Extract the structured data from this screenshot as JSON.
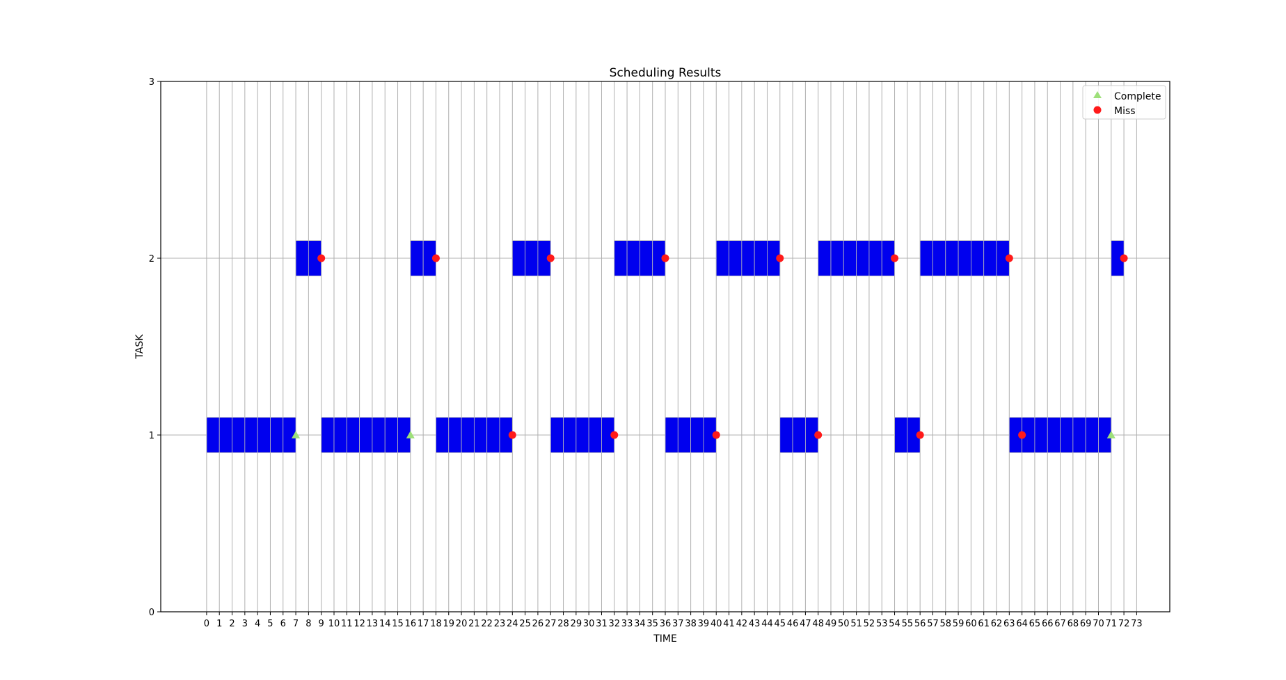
{
  "chart_data": {
    "type": "gantt",
    "title": "Scheduling Results",
    "xlabel": "TIME",
    "ylabel": "TASK",
    "xlim": [
      -3.6,
      75.6
    ],
    "ylim": [
      0,
      3
    ],
    "x_ticks": [
      0,
      1,
      2,
      3,
      4,
      5,
      6,
      7,
      8,
      9,
      10,
      11,
      12,
      13,
      14,
      15,
      16,
      17,
      18,
      19,
      20,
      21,
      22,
      23,
      24,
      25,
      26,
      27,
      28,
      29,
      30,
      31,
      32,
      33,
      34,
      35,
      36,
      37,
      38,
      39,
      40,
      41,
      42,
      43,
      44,
      45,
      46,
      47,
      48,
      49,
      50,
      51,
      52,
      53,
      54,
      55,
      56,
      57,
      58,
      59,
      60,
      61,
      62,
      63,
      64,
      65,
      66,
      67,
      68,
      69,
      70,
      71,
      72,
      73
    ],
    "y_ticks": [
      0,
      1,
      2,
      3
    ],
    "grid": true,
    "legend_position": "top-right",
    "legend": [
      {
        "label": "Complete",
        "marker": "triangle",
        "color": "#9ee07a"
      },
      {
        "label": "Miss",
        "marker": "circle",
        "color": "#ff1a1a"
      }
    ],
    "bar_color": "#0000ee",
    "bar_edge_color": "#bbbbbb",
    "series": [
      {
        "task": 1,
        "intervals": [
          [
            0,
            7
          ],
          [
            9,
            16
          ],
          [
            18,
            24
          ],
          [
            27,
            32
          ],
          [
            36,
            40
          ],
          [
            45,
            48
          ],
          [
            54,
            56
          ],
          [
            63,
            71
          ]
        ],
        "complete": [
          7,
          16,
          71
        ],
        "miss": [
          24,
          32,
          40,
          48,
          56,
          64
        ]
      },
      {
        "task": 2,
        "intervals": [
          [
            7,
            9
          ],
          [
            16,
            18
          ],
          [
            24,
            27
          ],
          [
            32,
            36
          ],
          [
            40,
            45
          ],
          [
            48,
            54
          ],
          [
            56,
            63
          ],
          [
            71,
            72
          ]
        ],
        "complete": [],
        "miss": [
          9,
          18,
          27,
          36,
          45,
          54,
          63,
          72
        ]
      }
    ]
  }
}
